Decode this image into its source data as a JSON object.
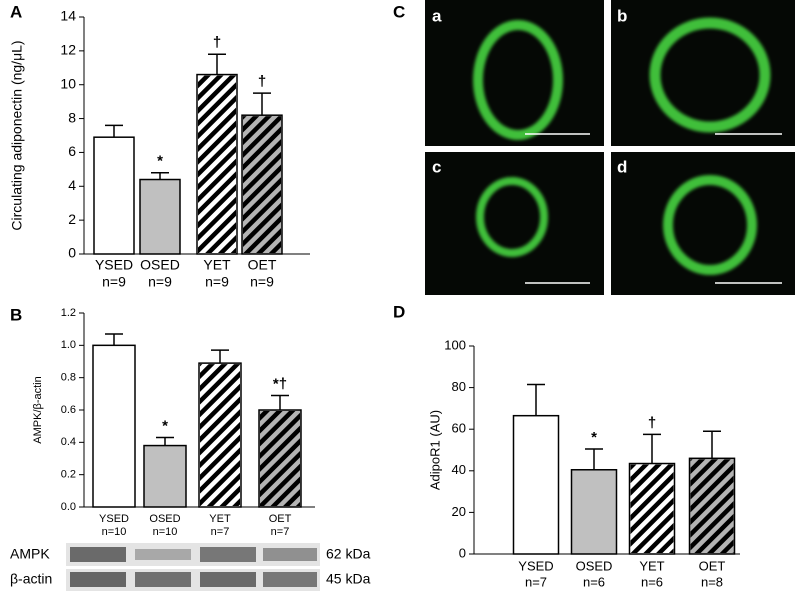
{
  "chart_data": [
    {
      "type": "bar",
      "panel": "A",
      "ylabel": "Circulating adiponectin (ng/μL)",
      "categories": [
        "YSED",
        "OSED",
        "YET",
        "OET"
      ],
      "n_labels": [
        "n=9",
        "n=9",
        "n=9",
        "n=9"
      ],
      "values": [
        6.9,
        4.4,
        10.6,
        8.2
      ],
      "errors": [
        0.7,
        0.4,
        1.2,
        1.3
      ],
      "annotations": [
        null,
        "*",
        "†",
        "†"
      ],
      "colors": [
        "#ffffff",
        "#c0c0c0",
        "#ffffff",
        "#b4b4b4"
      ],
      "hatch": [
        false,
        false,
        true,
        true
      ],
      "ylim": [
        0,
        14
      ],
      "yticks": [
        0,
        2,
        4,
        6,
        8,
        10,
        12,
        14
      ]
    },
    {
      "type": "bar",
      "panel": "B",
      "ylabel": "AMPK/β-actin",
      "categories": [
        "YSED",
        "OSED",
        "YET",
        "OET"
      ],
      "n_labels": [
        "n=10",
        "n=10",
        "n=7",
        "n=7"
      ],
      "values": [
        1.0,
        0.38,
        0.89,
        0.6
      ],
      "errors": [
        0.07,
        0.05,
        0.08,
        0.09
      ],
      "annotations": [
        null,
        "*",
        null,
        "*†"
      ],
      "colors": [
        "#ffffff",
        "#c0c0c0",
        "#ffffff",
        "#b4b4b4"
      ],
      "hatch": [
        false,
        false,
        true,
        true
      ],
      "ylim": [
        0,
        1.2
      ],
      "yticks": [
        {
          "value": 0,
          "label": "0.0"
        },
        0.2,
        0.4,
        0.6,
        0.8,
        {
          "value": 1,
          "label": "1.0"
        },
        1.2
      ],
      "blot_rows": [
        {
          "name": "AMPK",
          "size": "62 kDa"
        },
        {
          "name": "β-actin",
          "size": "45 kDa"
        }
      ]
    },
    {
      "type": "bar",
      "panel": "D",
      "ylabel": "AdipoR1 (AU)",
      "categories": [
        "YSED",
        "OSED",
        "YET",
        "OET"
      ],
      "n_labels": [
        "n=7",
        "n=6",
        "n=6",
        "n=8"
      ],
      "values": [
        66.5,
        40.5,
        43.5,
        46
      ],
      "errors": [
        15,
        10,
        14,
        13
      ],
      "annotations": [
        null,
        "*",
        "†",
        null
      ],
      "colors": [
        "#ffffff",
        "#c0c0c0",
        "#ffffff",
        "#b4b4b4"
      ],
      "hatch": [
        false,
        false,
        true,
        true
      ],
      "ylim": [
        0,
        100
      ],
      "yticks": [
        0,
        20,
        40,
        60,
        80,
        100
      ]
    }
  ],
  "image_panel": {
    "panel": "C",
    "labels": [
      "a",
      "b",
      "c",
      "d"
    ]
  }
}
